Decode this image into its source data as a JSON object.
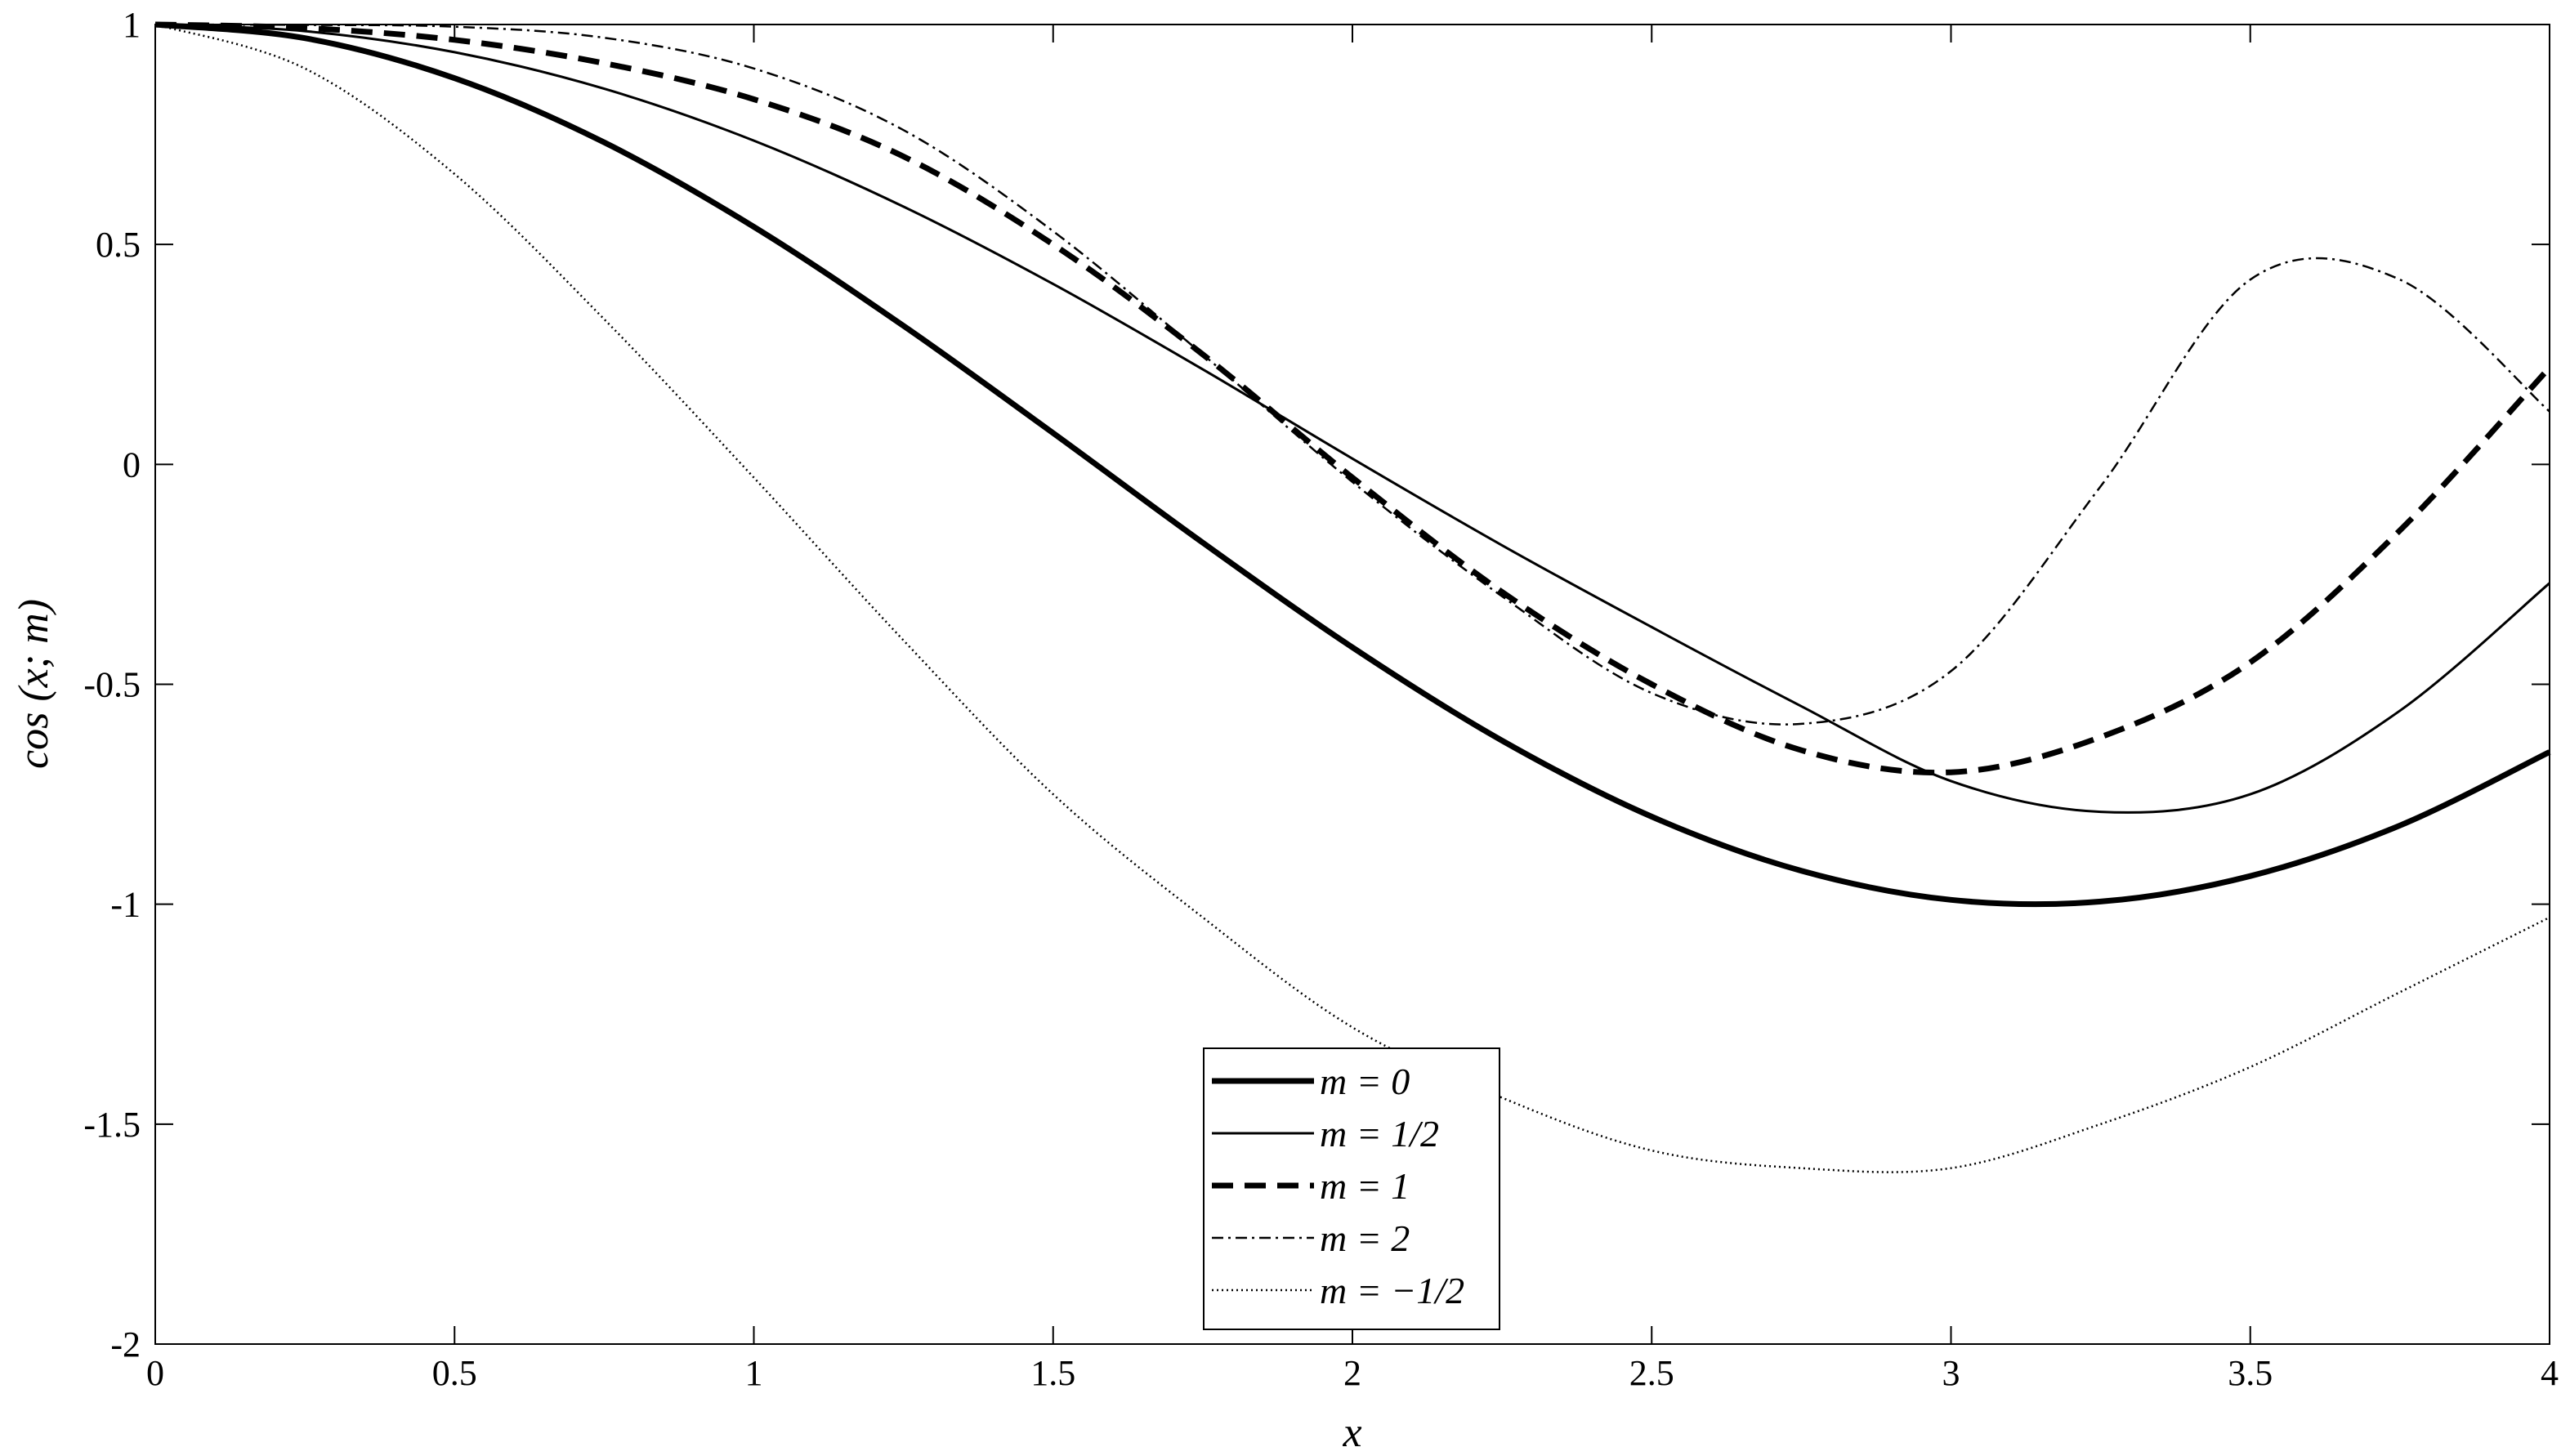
{
  "chart_data": {
    "type": "line",
    "title": "",
    "xlabel": "x",
    "ylabel": "cos (x; m)",
    "xlim": [
      0,
      4
    ],
    "ylim": [
      -2,
      1
    ],
    "xticks": [
      0,
      0.5,
      1,
      1.5,
      2,
      2.5,
      3,
      3.5,
      4
    ],
    "xtick_labels": [
      "0",
      "0.5",
      "1",
      "1.5",
      "2",
      "2.5",
      "3",
      "3.5",
      "4"
    ],
    "yticks": [
      1,
      0.5,
      0,
      -0.5,
      -1,
      -1.5,
      -2
    ],
    "ytick_labels": [
      "1",
      "0.5",
      "0",
      "-0.5",
      "-1",
      "-1.5",
      "-2"
    ],
    "grid": false,
    "legend_position": "bottom-center",
    "x": [
      0,
      0.25,
      0.5,
      0.75,
      1,
      1.25,
      1.5,
      1.75,
      2,
      2.25,
      2.5,
      2.75,
      3,
      3.25,
      3.5,
      3.75,
      4
    ],
    "series": [
      {
        "name": "m = 0",
        "style": "thick-solid",
        "values": [
          1,
          0.969,
          0.878,
          0.732,
          0.54,
          0.315,
          0.071,
          -0.178,
          -0.416,
          -0.628,
          -0.801,
          -0.924,
          -0.99,
          -0.994,
          -0.936,
          -0.821,
          -0.654
        ]
      },
      {
        "name": "m = 1/2",
        "style": "thin-solid",
        "values": [
          1,
          0.985,
          0.937,
          0.854,
          0.736,
          0.586,
          0.41,
          0.216,
          0.013,
          -0.184,
          -0.37,
          -0.55,
          -0.72,
          -0.79,
          -0.75,
          -0.56,
          -0.27
        ]
      },
      {
        "name": "m = 1",
        "style": "thick-dashed",
        "values": [
          1,
          0.992,
          0.965,
          0.912,
          0.83,
          0.7,
          0.5,
          0.25,
          -0.03,
          -0.29,
          -0.5,
          -0.65,
          -0.7,
          -0.62,
          -0.45,
          -0.15,
          0.22
        ]
      },
      {
        "name": "m = 2",
        "style": "dash-dot",
        "values": [
          1,
          0.999,
          0.995,
          0.97,
          0.9,
          0.76,
          0.53,
          0.25,
          -0.04,
          -0.3,
          -0.52,
          -0.59,
          -0.47,
          -0.05,
          0.42,
          0.42,
          0.12
        ]
      },
      {
        "name": "m = −1/2",
        "style": "dotted",
        "values": [
          1,
          0.9,
          0.66,
          0.33,
          -0.03,
          -0.4,
          -0.75,
          -1.03,
          -1.28,
          -1.44,
          -1.56,
          -1.6,
          -1.6,
          -1.5,
          -1.37,
          -1.2,
          -1.03
        ]
      }
    ]
  }
}
